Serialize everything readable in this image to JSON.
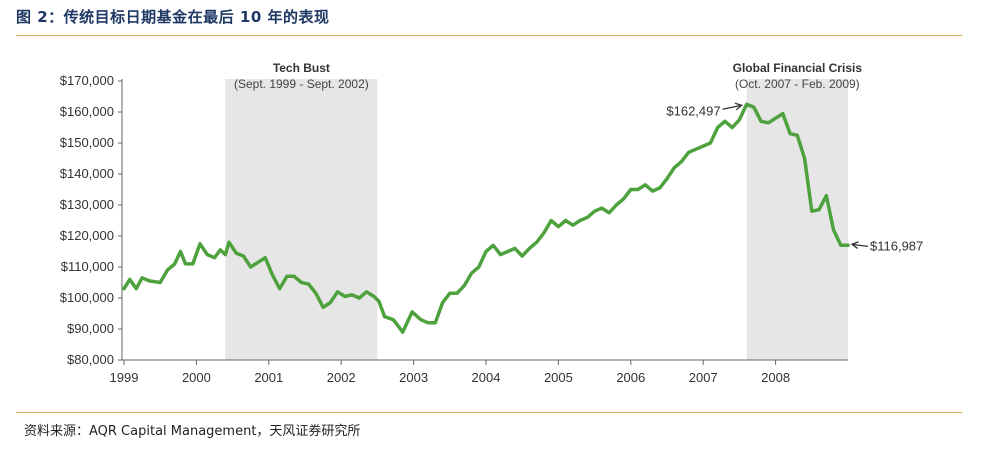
{
  "header": {
    "title": "图 2：传统目标日期基金在最后 10 年的表现"
  },
  "footer": {
    "source": "资料来源：AQR Capital Management，天风证券研究所"
  },
  "colors": {
    "line": "#4ea23e",
    "shade": "#e6e6e6",
    "rule": "#d9a456",
    "title": "#1f3864"
  },
  "chart_data": {
    "type": "line",
    "ylim": [
      80000,
      170000
    ],
    "yticks": [
      80000,
      90000,
      100000,
      110000,
      120000,
      130000,
      140000,
      150000,
      160000,
      170000
    ],
    "ytick_labels": [
      "$80,000",
      "$90,000",
      "$100,000",
      "$110,000",
      "$120,000",
      "$130,000",
      "$140,000",
      "$150,000",
      "$160,000",
      "$170,000"
    ],
    "xlim": [
      1999,
      2009
    ],
    "xticks": [
      1999,
      2000,
      2001,
      2002,
      2003,
      2004,
      2005,
      2006,
      2007,
      2008
    ],
    "xtick_labels": [
      "1999",
      "2000",
      "2001",
      "2002",
      "2003",
      "2004",
      "2005",
      "2006",
      "2007",
      "2008"
    ],
    "shaded_regions": [
      {
        "start": 2000.4,
        "end": 2002.5,
        "title": "Tech Bust",
        "subtitle": "(Sept. 1999 - Sept. 2002)"
      },
      {
        "start": 2007.6,
        "end": 2009.0,
        "title": "Global Financial Crisis",
        "subtitle": "(Oct. 2007 - Feb. 2009)"
      }
    ],
    "annotations": [
      {
        "x": 2007.6,
        "y": 162497,
        "text": "$162,497",
        "side": "left"
      },
      {
        "x": 2009.0,
        "y": 116987,
        "text": "$116,987",
        "side": "right"
      }
    ],
    "series": [
      {
        "x": [
          1999.0,
          1999.08,
          1999.17,
          1999.25,
          1999.35,
          1999.5,
          1999.6,
          1999.7,
          1999.78,
          1999.85,
          1999.95,
          2000.05,
          2000.15,
          2000.25,
          2000.33,
          2000.4,
          2000.45,
          2000.55,
          2000.65,
          2000.75,
          2000.85,
          2000.95,
          2001.05,
          2001.15,
          2001.25,
          2001.35,
          2001.45,
          2001.55,
          2001.65,
          2001.75,
          2001.85,
          2001.95,
          2002.05,
          2002.15,
          2002.25,
          2002.35,
          2002.45,
          2002.52,
          2002.6,
          2002.72,
          2002.85,
          2002.98,
          2003.1,
          2003.2,
          2003.3,
          2003.4,
          2003.5,
          2003.6,
          2003.7,
          2003.8,
          2003.9,
          2004.0,
          2004.1,
          2004.2,
          2004.3,
          2004.4,
          2004.5,
          2004.6,
          2004.7,
          2004.8,
          2004.9,
          2005.0,
          2005.1,
          2005.2,
          2005.3,
          2005.4,
          2005.5,
          2005.6,
          2005.7,
          2005.8,
          2005.9,
          2006.0,
          2006.1,
          2006.2,
          2006.3,
          2006.4,
          2006.5,
          2006.6,
          2006.7,
          2006.8,
          2006.9,
          2007.0,
          2007.1,
          2007.2,
          2007.3,
          2007.4,
          2007.5,
          2007.6,
          2007.7,
          2007.8,
          2007.9,
          2008.0,
          2008.1,
          2008.2,
          2008.3,
          2008.4,
          2008.5,
          2008.6,
          2008.7,
          2008.8,
          2008.9,
          2009.0
        ],
        "y": [
          103000,
          106000,
          103000,
          106500,
          105500,
          105000,
          109000,
          111000,
          115000,
          111000,
          111000,
          117500,
          114000,
          113000,
          115500,
          114000,
          118000,
          114500,
          113500,
          110000,
          111500,
          113000,
          107500,
          103000,
          107000,
          107000,
          105000,
          104500,
          101500,
          97000,
          98500,
          102000,
          100500,
          101000,
          100000,
          102000,
          100500,
          99000,
          94000,
          93000,
          89000,
          95500,
          93000,
          92000,
          92000,
          98500,
          101500,
          101500,
          104000,
          108000,
          110000,
          115000,
          117000,
          114000,
          115000,
          116000,
          113500,
          116000,
          118000,
          121000,
          125000,
          123000,
          125000,
          123500,
          125000,
          126000,
          128000,
          129000,
          127500,
          130000,
          132000,
          135000,
          135000,
          136500,
          134500,
          135500,
          138500,
          142000,
          144000,
          147000,
          148000,
          149000,
          150000,
          155000,
          157000,
          155000,
          157500,
          162497,
          161500,
          157000,
          156500,
          158000,
          159500,
          153000,
          152500,
          145000,
          128000,
          128500,
          133000,
          122000,
          116987,
          116987
        ]
      }
    ]
  }
}
